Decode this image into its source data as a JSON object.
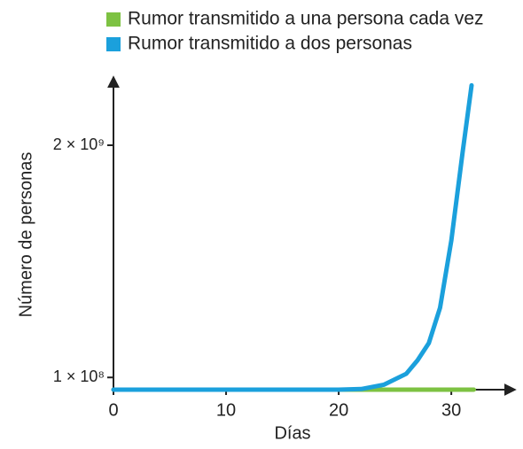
{
  "chart_data": {
    "type": "line",
    "x_label": "Días",
    "y_label": "Número de personas",
    "series": [
      {
        "name": "Rumor transmitido a una persona cada vez",
        "color": "#7dc242",
        "x": [
          0,
          32
        ],
        "values": [
          1,
          33
        ]
      },
      {
        "name": "Rumor transmitido a dos personas",
        "color": "#1ba0dc",
        "x": [
          0,
          10,
          20,
          22,
          24,
          26,
          27,
          28,
          29,
          30,
          31,
          31.8
        ],
        "values": [
          0,
          0,
          0,
          5000000,
          40000000,
          130000000,
          240000000,
          380000000,
          670000000,
          1220000000,
          1940000000,
          2490000000
        ]
      }
    ],
    "xlim": [
      0,
      35.5
    ],
    "xticks": [
      0,
      10,
      20,
      30
    ],
    "ylim": [
      0,
      2500000000
    ],
    "yticks": [
      {
        "value": 100000000,
        "label": "1 × 10⁸"
      },
      {
        "value": 2000000000,
        "label": "2 × 10⁹"
      }
    ],
    "legend": "top"
  }
}
